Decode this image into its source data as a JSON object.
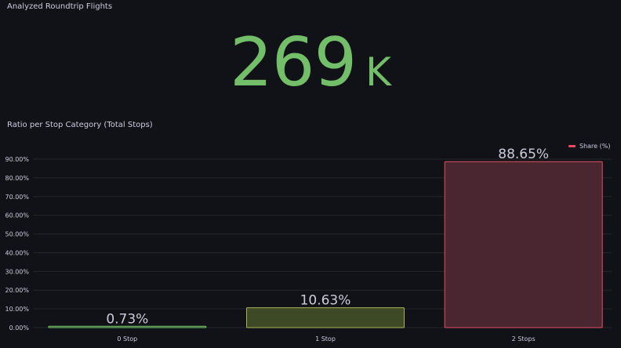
{
  "stat_panel": {
    "title": "Analyzed Roundtrip Flights",
    "value": "269",
    "unit": "K",
    "color": "#73bf69"
  },
  "chart_panel": {
    "title": "Ratio per Stop Category (Total Stops)"
  },
  "chart_data": {
    "type": "bar",
    "title": "Ratio per Stop Category (Total Stops)",
    "categories": [
      "0 Stop",
      "1 Stop",
      "2 Stops"
    ],
    "series": [
      {
        "name": "Share (%)",
        "values": [
          0.73,
          10.63,
          88.65
        ],
        "value_labels": [
          "0.73%",
          "10.63%",
          "88.65%"
        ],
        "colors": [
          "#73bf69",
          "#a8b05a",
          "#e0525f"
        ],
        "fill_colors": [
          "#2c4527",
          "#3e4a26",
          "#4a2630"
        ]
      }
    ],
    "yticks": [
      "0.00%",
      "10.00%",
      "20.00%",
      "30.00%",
      "40.00%",
      "50.00%",
      "60.00%",
      "70.00%",
      "80.00%",
      "90.00%"
    ],
    "ylim": [
      0,
      90
    ],
    "legend_color": "#f2495c",
    "grid": true,
    "legend_placement": "top-right"
  }
}
